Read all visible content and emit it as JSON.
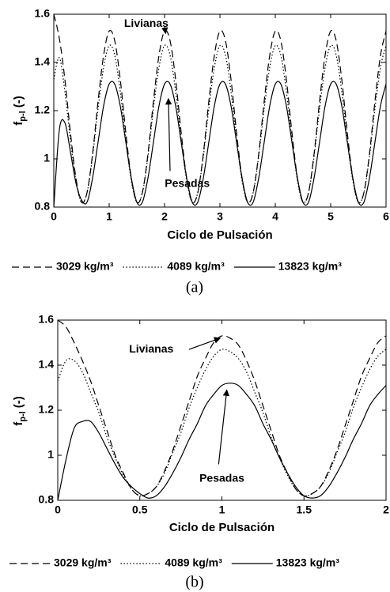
{
  "chart_data": [
    {
      "type": "line",
      "caption": "(a)",
      "xlabel": "Ciclo de Pulsación",
      "ylabel": {
        "text": "f",
        "sub": "p-l",
        "suffix": "(-)"
      },
      "annotations": [
        "Livianas",
        "Pesadas"
      ],
      "xlim": [
        0,
        6
      ],
      "ylim": [
        0.8,
        1.6
      ],
      "xticks": [
        0,
        1,
        2,
        3,
        4,
        5,
        6
      ],
      "yticks": [
        0.8,
        1,
        1.2,
        1.4,
        1.6
      ],
      "x": [
        0,
        0.1,
        0.2,
        0.3,
        0.4,
        0.5,
        0.6,
        0.7,
        0.8,
        0.9,
        1,
        1.1,
        1.2,
        1.3,
        1.4,
        1.5,
        1.6,
        1.7,
        1.8,
        1.9,
        2,
        2.1,
        2.2,
        2.3,
        2.4,
        2.5,
        2.6,
        2.7,
        2.8,
        2.9,
        3,
        3.1,
        3.2,
        3.3,
        3.4,
        3.5,
        3.6,
        3.7,
        3.8,
        3.9,
        4,
        4.1,
        4.2,
        4.3,
        4.4,
        4.5,
        4.6,
        4.7,
        4.8,
        4.9,
        5,
        5.1,
        5.2,
        5.3,
        5.4,
        5.5,
        5.6,
        5.7,
        5.8,
        5.9,
        6
      ],
      "series": [
        {
          "name": "3029 kg/m³",
          "color": "#000",
          "dash": "dashed",
          "values": [
            1.6,
            1.5,
            1.33,
            1.11,
            0.92,
            0.82,
            0.86,
            1.02,
            1.24,
            1.43,
            1.53,
            1.49,
            1.33,
            1.11,
            0.92,
            0.82,
            0.86,
            1.02,
            1.24,
            1.43,
            1.53,
            1.49,
            1.33,
            1.11,
            0.92,
            0.82,
            0.86,
            1.02,
            1.24,
            1.43,
            1.53,
            1.49,
            1.33,
            1.11,
            0.92,
            0.82,
            0.86,
            1.02,
            1.24,
            1.43,
            1.53,
            1.49,
            1.33,
            1.11,
            0.92,
            0.82,
            0.86,
            1.02,
            1.24,
            1.43,
            1.53,
            1.49,
            1.33,
            1.11,
            0.92,
            0.82,
            0.86,
            1.02,
            1.24,
            1.43,
            1.53
          ]
        },
        {
          "name": "4089 kg/m³",
          "color": "#000",
          "dash": "dotted",
          "values": [
            1.33,
            1.42,
            1.28,
            1.08,
            0.91,
            0.82,
            0.86,
            1.01,
            1.21,
            1.38,
            1.47,
            1.43,
            1.28,
            1.08,
            0.91,
            0.82,
            0.86,
            1.01,
            1.21,
            1.38,
            1.47,
            1.43,
            1.28,
            1.08,
            0.91,
            0.82,
            0.86,
            1.01,
            1.21,
            1.38,
            1.47,
            1.43,
            1.28,
            1.08,
            0.91,
            0.82,
            0.86,
            1.01,
            1.21,
            1.38,
            1.47,
            1.43,
            1.28,
            1.08,
            0.91,
            0.82,
            0.86,
            1.01,
            1.21,
            1.38,
            1.47,
            1.43,
            1.28,
            1.08,
            0.91,
            0.82,
            0.86,
            1.01,
            1.21,
            1.38,
            1.47
          ]
        },
        {
          "name": "13823 kg/m³",
          "color": "#000",
          "dash": "solid",
          "values": [
            0.8,
            1.12,
            1.15,
            1.03,
            0.9,
            0.83,
            0.82,
            0.92,
            1.07,
            1.22,
            1.31,
            1.31,
            1.22,
            1.07,
            0.92,
            0.82,
            0.82,
            0.92,
            1.07,
            1.22,
            1.31,
            1.31,
            1.22,
            1.07,
            0.92,
            0.82,
            0.82,
            0.92,
            1.07,
            1.22,
            1.31,
            1.31,
            1.22,
            1.07,
            0.92,
            0.82,
            0.82,
            0.92,
            1.07,
            1.22,
            1.31,
            1.31,
            1.22,
            1.07,
            0.92,
            0.82,
            0.82,
            0.92,
            1.07,
            1.22,
            1.31,
            1.31,
            1.22,
            1.07,
            0.92,
            0.82,
            0.82,
            0.92,
            1.07,
            1.22,
            1.31
          ]
        }
      ]
    },
    {
      "type": "line",
      "caption": "(b)",
      "xlabel": "Ciclo de Pulsación",
      "ylabel": {
        "text": "f",
        "sub": "p-l",
        "suffix": "(-)"
      },
      "annotations": [
        "Livianas",
        "Pesadas"
      ],
      "xlim": [
        0,
        2
      ],
      "ylim": [
        0.8,
        1.6
      ],
      "xticks": [
        0,
        0.5,
        1,
        1.5,
        2
      ],
      "yticks": [
        0.8,
        1,
        1.2,
        1.4,
        1.6
      ],
      "x": [
        0,
        0.05,
        0.1,
        0.15,
        0.2,
        0.25,
        0.3,
        0.35,
        0.4,
        0.45,
        0.5,
        0.55,
        0.6,
        0.65,
        0.7,
        0.75,
        0.8,
        0.85,
        0.9,
        0.95,
        1,
        1.05,
        1.1,
        1.15,
        1.2,
        1.25,
        1.3,
        1.35,
        1.4,
        1.45,
        1.5,
        1.55,
        1.6,
        1.65,
        1.7,
        1.75,
        1.8,
        1.85,
        1.9,
        1.95,
        2
      ],
      "series": [
        {
          "name": "3029 kg/m³",
          "color": "#000",
          "dash": "dashed",
          "values": [
            1.6,
            1.57,
            1.5,
            1.42,
            1.33,
            1.22,
            1.11,
            1.0,
            0.92,
            0.85,
            0.82,
            0.83,
            0.86,
            0.93,
            1.02,
            1.13,
            1.24,
            1.35,
            1.43,
            1.5,
            1.53,
            1.52,
            1.49,
            1.42,
            1.33,
            1.22,
            1.11,
            1.0,
            0.92,
            0.85,
            0.82,
            0.83,
            0.86,
            0.93,
            1.02,
            1.13,
            1.24,
            1.35,
            1.43,
            1.5,
            1.53
          ]
        },
        {
          "name": "4089 kg/m³",
          "color": "#000",
          "dash": "dotted",
          "values": [
            1.33,
            1.42,
            1.42,
            1.37,
            1.28,
            1.19,
            1.08,
            0.99,
            0.91,
            0.85,
            0.82,
            0.83,
            0.86,
            0.92,
            1.01,
            1.1,
            1.21,
            1.3,
            1.38,
            1.44,
            1.47,
            1.46,
            1.43,
            1.37,
            1.28,
            1.19,
            1.08,
            0.99,
            0.91,
            0.85,
            0.82,
            0.83,
            0.86,
            0.92,
            1.01,
            1.1,
            1.21,
            1.3,
            1.38,
            1.44,
            1.47
          ]
        },
        {
          "name": "13823 kg/m³",
          "color": "#000",
          "dash": "solid",
          "values": [
            0.8,
            0.98,
            1.12,
            1.15,
            1.15,
            1.1,
            1.03,
            0.96,
            0.9,
            0.86,
            0.83,
            0.81,
            0.82,
            0.86,
            0.92,
            0.99,
            1.07,
            1.14,
            1.22,
            1.27,
            1.31,
            1.32,
            1.31,
            1.27,
            1.22,
            1.14,
            1.07,
            0.99,
            0.92,
            0.86,
            0.82,
            0.81,
            0.82,
            0.86,
            0.92,
            0.99,
            1.07,
            1.14,
            1.22,
            1.27,
            1.31
          ]
        }
      ]
    }
  ]
}
